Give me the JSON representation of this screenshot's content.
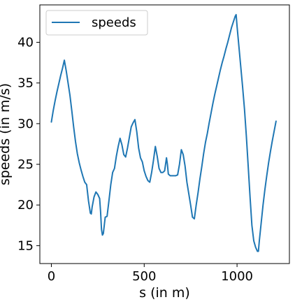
{
  "chart_data": {
    "type": "line",
    "title": "",
    "xlabel": "s (in m)",
    "ylabel": "speeds (in m/s)",
    "xlim": [
      -62,
      1282
    ],
    "ylim": [
      12.8,
      44.6
    ],
    "xticks": [
      0,
      500,
      1000
    ],
    "yticks": [
      15,
      20,
      25,
      30,
      35,
      40
    ],
    "grid": false,
    "legend": {
      "position": "top-left",
      "entries": [
        "speeds"
      ]
    },
    "series": [
      {
        "name": "speeds",
        "color": "#1f77b4",
        "x": [
          0,
          10,
          20,
          30,
          40,
          50,
          60,
          70,
          80,
          90,
          100,
          110,
          120,
          130,
          140,
          150,
          160,
          170,
          180,
          190,
          200,
          210,
          215,
          220,
          230,
          240,
          250,
          260,
          265,
          270,
          275,
          280,
          285,
          290,
          300,
          310,
          320,
          330,
          340,
          350,
          360,
          370,
          380,
          390,
          400,
          410,
          420,
          430,
          440,
          445,
          450,
          460,
          470,
          480,
          490,
          500,
          510,
          520,
          530,
          540,
          550,
          560,
          570,
          580,
          590,
          600,
          610,
          620,
          625,
          630,
          640,
          650,
          660,
          670,
          680,
          690,
          700,
          710,
          720,
          730,
          740,
          750,
          760,
          770,
          780,
          790,
          800,
          810,
          820,
          830,
          840,
          850,
          860,
          870,
          880,
          890,
          900,
          910,
          920,
          930,
          940,
          950,
          960,
          970,
          980,
          990,
          995,
          1000,
          1010,
          1020,
          1030,
          1040,
          1050,
          1060,
          1070,
          1080,
          1090,
          1100,
          1110,
          1115,
          1120,
          1130,
          1140,
          1150,
          1160,
          1170,
          1180,
          1190,
          1200,
          1210
        ],
        "values": [
          30.2,
          31.6,
          32.8,
          33.9,
          34.9,
          35.9,
          36.8,
          37.8,
          36.5,
          35.0,
          33.5,
          31.6,
          29.6,
          27.8,
          26.3,
          25.2,
          24.3,
          23.5,
          22.8,
          22.5,
          20.5,
          19.0,
          18.9,
          19.8,
          21.0,
          21.6,
          21.3,
          20.8,
          19.2,
          17.0,
          16.3,
          16.5,
          17.5,
          18.5,
          18.6,
          20.5,
          22.5,
          24.0,
          24.5,
          26.0,
          27.2,
          28.2,
          27.4,
          26.2,
          25.9,
          27.0,
          28.3,
          29.6,
          30.1,
          30.3,
          30.5,
          29.0,
          27.0,
          25.8,
          25.3,
          24.2,
          23.5,
          23.0,
          22.8,
          24.0,
          25.5,
          27.2,
          26.0,
          24.5,
          24.0,
          24.0,
          24.2,
          25.8,
          25.0,
          23.8,
          23.6,
          23.6,
          23.6,
          23.6,
          23.7,
          25.0,
          26.8,
          26.2,
          24.8,
          22.8,
          21.4,
          20.0,
          18.5,
          18.3,
          20.0,
          21.5,
          23.2,
          24.7,
          26.3,
          27.7,
          28.8,
          30.1,
          31.3,
          32.5,
          33.6,
          34.6,
          35.6,
          36.6,
          37.5,
          38.3,
          39.2,
          40.0,
          40.9,
          41.8,
          42.5,
          43.2,
          43.4,
          42.0,
          39.5,
          37.0,
          34.5,
          31.8,
          28.5,
          24.8,
          21.0,
          17.5,
          15.6,
          14.8,
          14.3,
          14.3,
          15.6,
          17.8,
          20.0,
          21.9,
          23.6,
          25.2,
          26.6,
          27.9,
          29.1,
          30.3
        ]
      }
    ]
  }
}
